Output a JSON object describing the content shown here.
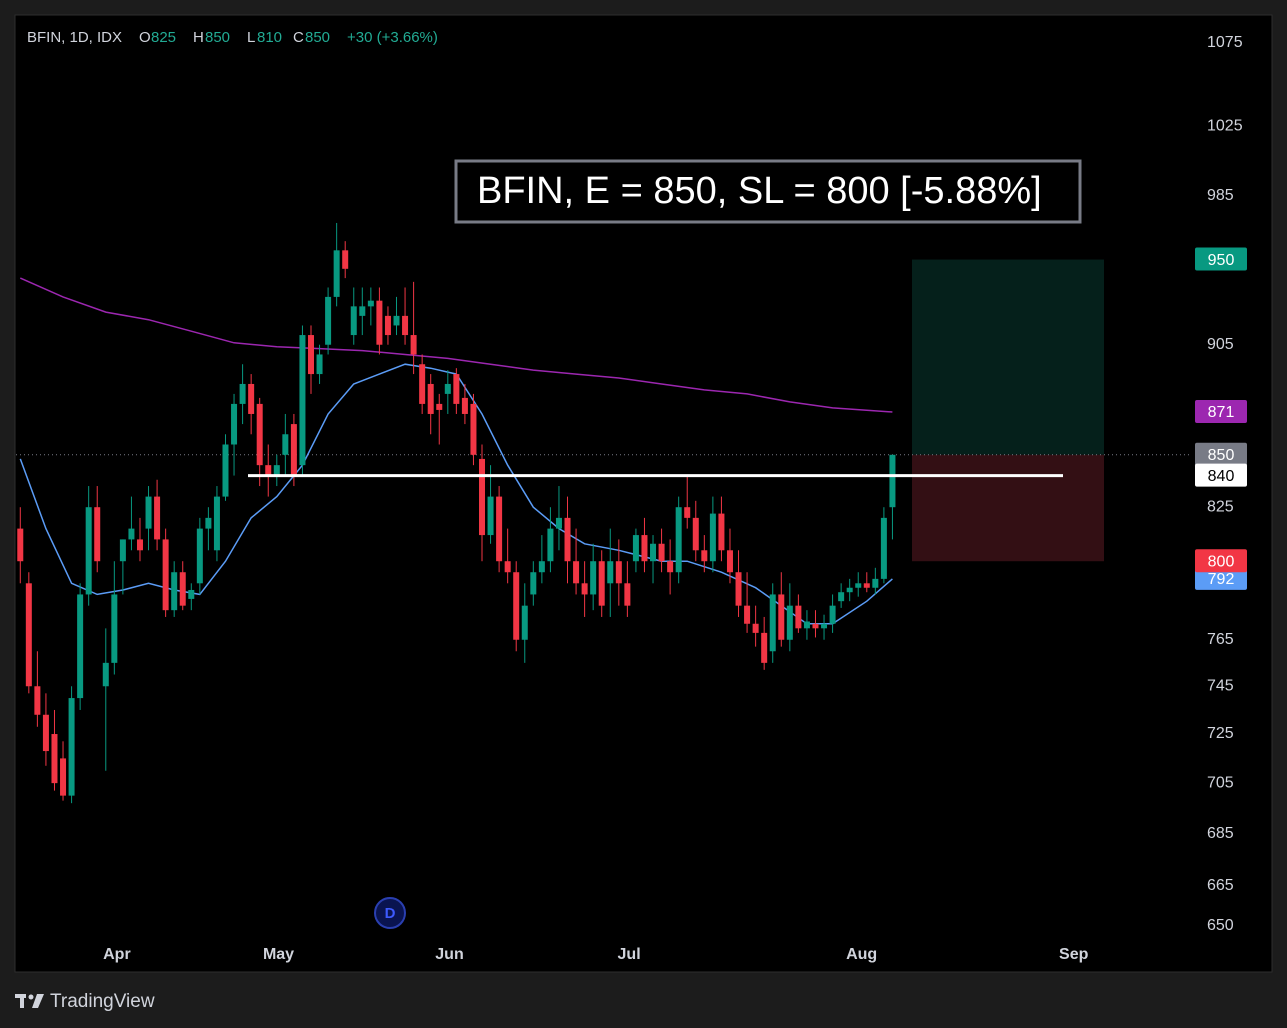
{
  "chart_data": {
    "type": "candlestick",
    "header": {
      "symbol": "BFIN, 1D, IDX",
      "labels": [
        "O",
        "H",
        "L",
        "C"
      ],
      "change": "+30 (+3.66%)"
    },
    "annotation": "BFIN, E = 850, SL = 800 [-5.88%]",
    "event_marker": "D",
    "footer": "TradingView",
    "up_color": "#089981",
    "down_color": "#f23645",
    "log_scale": true,
    "ylim": [
      644,
      1092
    ],
    "yticks": [
      1075,
      1025,
      985,
      905,
      825,
      765,
      745,
      725,
      705,
      685,
      665,
      650
    ],
    "xlim": [
      -0.5,
      136.8
    ],
    "xticks": [
      {
        "value": 11.3,
        "label": "Apr"
      },
      {
        "value": 30.2,
        "label": "May"
      },
      {
        "value": 50.2,
        "label": "Jun"
      },
      {
        "value": 71.2,
        "label": "Jul"
      },
      {
        "value": 98.4,
        "label": "Aug"
      },
      {
        "value": 123.2,
        "label": "Sep"
      }
    ],
    "open": [
      815,
      790,
      745,
      733,
      725,
      715,
      700,
      740,
      785,
      825,
      745,
      755,
      800,
      810,
      810,
      815,
      830,
      810,
      778,
      795,
      783,
      790,
      815,
      805,
      830,
      855,
      875,
      885,
      875,
      845,
      840,
      850,
      865,
      845,
      910,
      890,
      905,
      930,
      955,
      910,
      920,
      925,
      928,
      920,
      915,
      920,
      910,
      895,
      885,
      875,
      880,
      890,
      878,
      875,
      848,
      812,
      830,
      800,
      795,
      765,
      785,
      795,
      800,
      815,
      820,
      800,
      790,
      785,
      800,
      790,
      800,
      790,
      800,
      812,
      800,
      808,
      800,
      795,
      825,
      820,
      805,
      800,
      822,
      805,
      795,
      780,
      772,
      768,
      760,
      785,
      765,
      780,
      770,
      772,
      770,
      772,
      782,
      786,
      788,
      790,
      788,
      792,
      825
    ],
    "high": [
      825,
      795,
      760,
      742,
      735,
      722,
      745,
      790,
      835,
      835,
      770,
      800,
      810,
      830,
      820,
      835,
      838,
      815,
      800,
      800,
      790,
      820,
      825,
      835,
      860,
      880,
      895,
      890,
      878,
      855,
      850,
      870,
      870,
      915,
      915,
      905,
      935,
      970,
      960,
      935,
      935,
      935,
      935,
      925,
      930,
      935,
      938,
      900,
      890,
      880,
      892,
      893,
      885,
      880,
      855,
      845,
      835,
      815,
      800,
      790,
      800,
      812,
      825,
      835,
      830,
      815,
      800,
      808,
      805,
      815,
      810,
      800,
      815,
      820,
      812,
      815,
      810,
      830,
      840,
      828,
      812,
      830,
      830,
      815,
      805,
      795,
      780,
      775,
      790,
      795,
      790,
      785,
      778,
      778,
      776,
      785,
      790,
      792,
      795,
      795,
      797,
      825,
      850
    ],
    "low": [
      790,
      742,
      728,
      712,
      702,
      698,
      697,
      735,
      780,
      795,
      710,
      750,
      785,
      805,
      800,
      805,
      805,
      775,
      775,
      778,
      778,
      785,
      805,
      800,
      828,
      840,
      865,
      860,
      835,
      830,
      835,
      840,
      835,
      840,
      880,
      885,
      900,
      925,
      940,
      905,
      910,
      915,
      900,
      905,
      910,
      905,
      890,
      870,
      860,
      855,
      870,
      870,
      865,
      845,
      800,
      808,
      795,
      790,
      760,
      755,
      780,
      790,
      795,
      805,
      790,
      785,
      775,
      778,
      775,
      775,
      780,
      775,
      795,
      795,
      790,
      795,
      785,
      790,
      815,
      800,
      795,
      795,
      800,
      790,
      775,
      768,
      762,
      752,
      755,
      762,
      760,
      768,
      765,
      766,
      765,
      768,
      779,
      782,
      784,
      786,
      785,
      790,
      810
    ],
    "close": [
      800,
      745,
      733,
      718,
      705,
      700,
      740,
      785,
      825,
      800,
      755,
      785,
      810,
      815,
      805,
      830,
      810,
      778,
      795,
      780,
      787,
      815,
      820,
      830,
      855,
      875,
      885,
      870,
      845,
      840,
      845,
      860,
      840,
      910,
      890,
      900,
      930,
      955,
      945,
      925,
      925,
      928,
      905,
      910,
      920,
      910,
      900,
      875,
      870,
      872,
      885,
      875,
      870,
      850,
      812,
      830,
      800,
      795,
      765,
      780,
      795,
      800,
      815,
      820,
      800,
      790,
      785,
      800,
      780,
      800,
      790,
      780,
      812,
      800,
      808,
      800,
      795,
      825,
      820,
      805,
      800,
      822,
      805,
      795,
      780,
      772,
      768,
      755,
      785,
      765,
      780,
      770,
      773,
      770,
      772,
      780,
      786,
      788,
      790,
      788,
      792,
      820,
      850
    ],
    "lines": [
      {
        "color": "#9c27b0",
        "x": [
          0,
          5,
          10,
          15,
          20,
          25,
          30,
          35,
          40,
          45,
          50,
          55,
          60,
          65,
          70,
          75,
          80,
          85,
          90,
          95,
          102
        ],
        "values": [
          940,
          930,
          922,
          918,
          912,
          906,
          904,
          903,
          902,
          900,
          898,
          895,
          892,
          890,
          888,
          885,
          882,
          880,
          876,
          873,
          871
        ]
      },
      {
        "color": "#5b9cf6",
        "x": [
          0,
          3,
          6,
          9,
          12,
          15,
          18,
          21,
          24,
          27,
          30,
          33,
          36,
          39,
          42,
          45,
          48,
          51,
          54,
          57,
          60,
          63,
          66,
          70,
          75,
          78,
          82,
          86,
          89,
          92,
          95,
          99,
          102
        ],
        "values": [
          848,
          815,
          790,
          785,
          787,
          790,
          787,
          785,
          800,
          820,
          830,
          845,
          870,
          885,
          890,
          895,
          893,
          890,
          870,
          845,
          825,
          815,
          808,
          805,
          800,
          800,
          795,
          788,
          780,
          772,
          772,
          782,
          792
        ]
      }
    ],
    "hline": 840,
    "position": {
      "target": 950,
      "entry": 850,
      "stop": 800
    }
  }
}
